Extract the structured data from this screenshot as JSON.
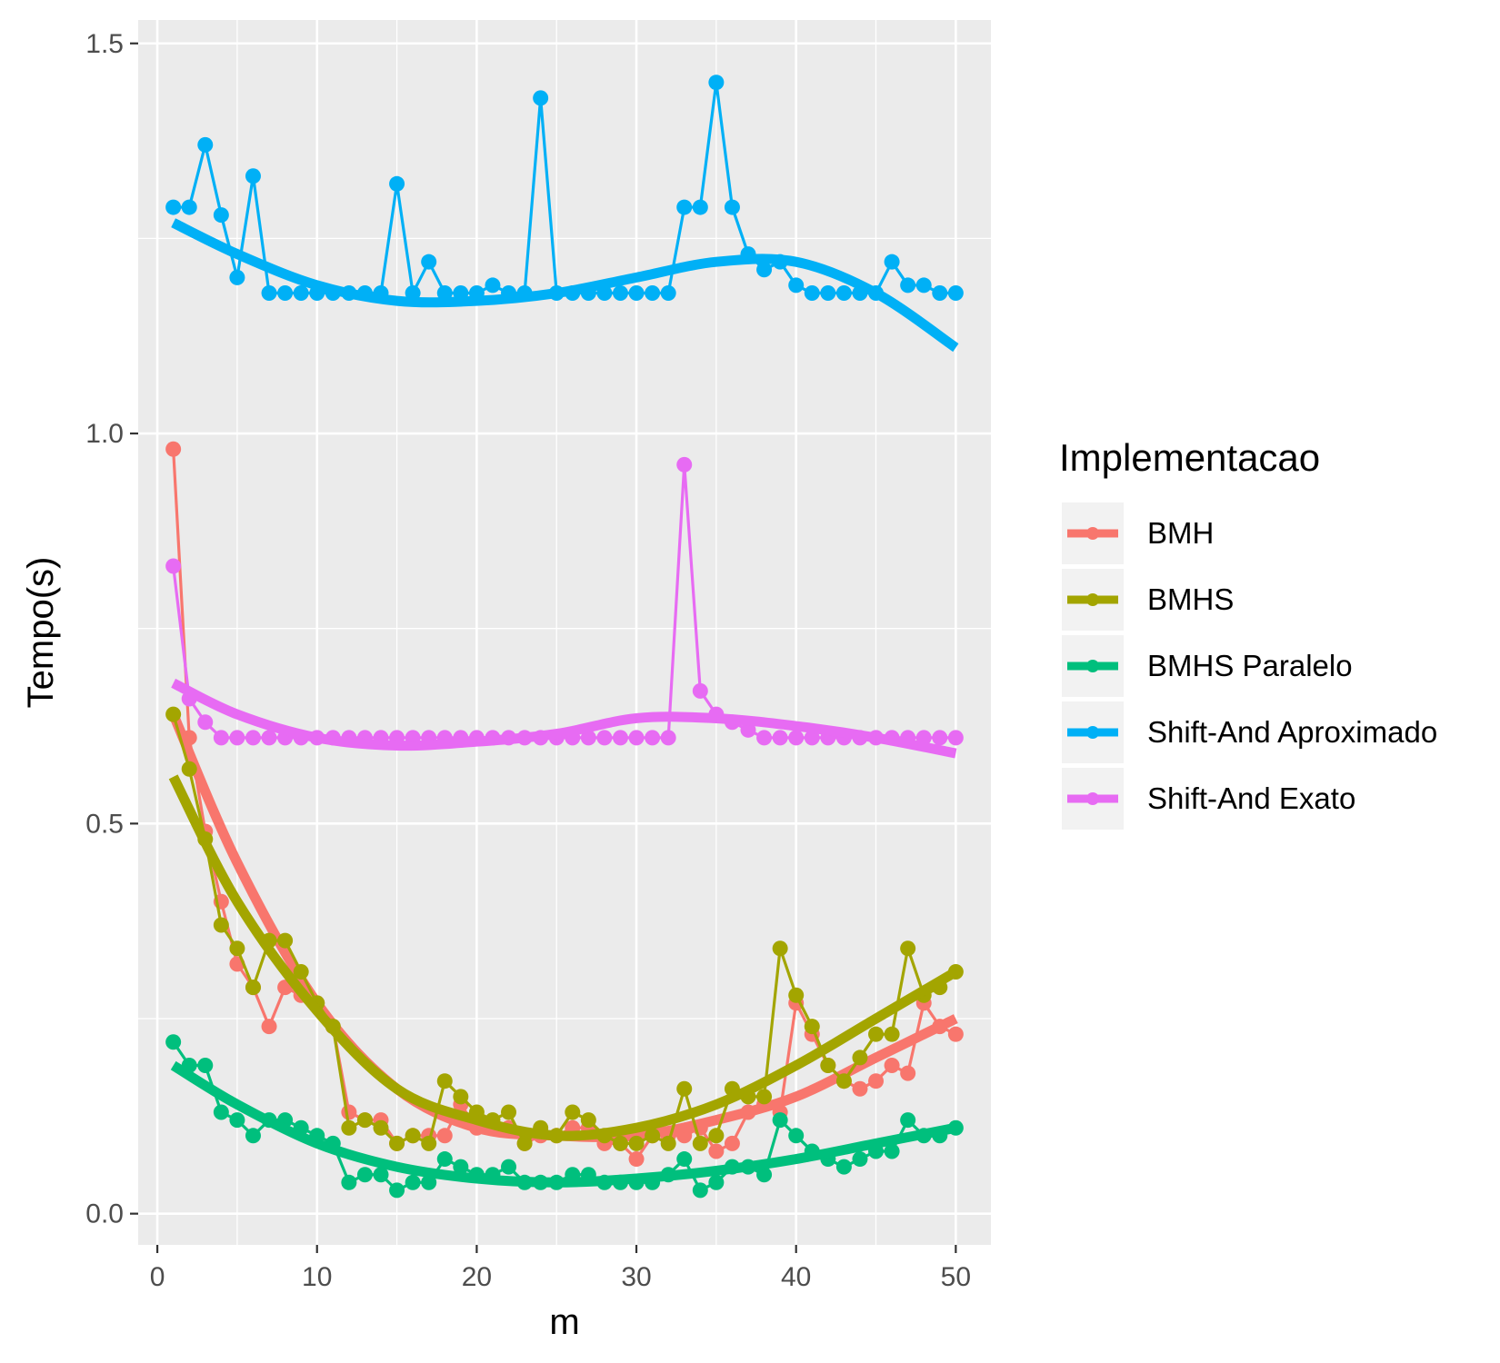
{
  "chart_data": {
    "type": "line",
    "xlabel": "m",
    "ylabel": "Tempo(s)",
    "xlim": [
      -1.2,
      52.2
    ],
    "ylim": [
      -0.04,
      1.53
    ],
    "x_ticks": [
      0,
      10,
      20,
      30,
      40,
      50
    ],
    "x_tick_labels": [
      "0",
      "10",
      "20",
      "30",
      "40",
      "50"
    ],
    "y_ticks": [
      0.0,
      0.5,
      1.0,
      1.5
    ],
    "y_tick_labels": [
      "0.0",
      "0.5",
      "1.0",
      "1.5"
    ],
    "grid": true,
    "panel_background": "#ebebeb",
    "legend": {
      "title": "Implementacao",
      "position": "right"
    },
    "series": [
      {
        "name": "BMH",
        "color": "#F8766D",
        "x": [
          1,
          2,
          3,
          4,
          5,
          6,
          7,
          8,
          9,
          10,
          11,
          12,
          13,
          14,
          15,
          16,
          17,
          18,
          19,
          20,
          21,
          22,
          23,
          24,
          25,
          26,
          27,
          28,
          29,
          30,
          31,
          32,
          33,
          34,
          35,
          36,
          37,
          38,
          39,
          40,
          41,
          42,
          43,
          44,
          45,
          46,
          47,
          48,
          49,
          50
        ],
        "values": [
          0.98,
          0.61,
          0.49,
          0.4,
          0.32,
          0.29,
          0.24,
          0.29,
          0.28,
          0.27,
          0.24,
          0.13,
          0.12,
          0.12,
          0.09,
          0.1,
          0.1,
          0.1,
          0.14,
          0.11,
          0.11,
          0.11,
          0.09,
          0.1,
          0.1,
          0.11,
          0.11,
          0.09,
          0.09,
          0.07,
          0.1,
          0.1,
          0.1,
          0.11,
          0.08,
          0.09,
          0.13,
          0.14,
          0.13,
          0.27,
          0.23,
          0.19,
          0.17,
          0.16,
          0.17,
          0.19,
          0.18,
          0.27,
          0.24,
          0.23
        ],
        "smooth": [
          [
            1,
            0.64
          ],
          [
            5,
            0.45
          ],
          [
            10,
            0.27
          ],
          [
            15,
            0.16
          ],
          [
            20,
            0.11
          ],
          [
            25,
            0.1
          ],
          [
            30,
            0.1
          ],
          [
            35,
            0.12
          ],
          [
            40,
            0.15
          ],
          [
            45,
            0.2
          ],
          [
            50,
            0.25
          ]
        ]
      },
      {
        "name": "BMHS",
        "color": "#A3A500",
        "x": [
          1,
          2,
          3,
          4,
          5,
          6,
          7,
          8,
          9,
          10,
          11,
          12,
          13,
          14,
          15,
          16,
          17,
          18,
          19,
          20,
          21,
          22,
          23,
          24,
          25,
          26,
          27,
          28,
          29,
          30,
          31,
          32,
          33,
          34,
          35,
          36,
          37,
          38,
          39,
          40,
          41,
          42,
          43,
          44,
          45,
          46,
          47,
          48,
          49,
          50
        ],
        "values": [
          0.64,
          0.57,
          0.48,
          0.37,
          0.34,
          0.29,
          0.35,
          0.35,
          0.31,
          0.27,
          0.24,
          0.11,
          0.12,
          0.11,
          0.09,
          0.1,
          0.09,
          0.17,
          0.15,
          0.13,
          0.12,
          0.13,
          0.09,
          0.11,
          0.1,
          0.13,
          0.12,
          0.1,
          0.09,
          0.09,
          0.1,
          0.09,
          0.16,
          0.09,
          0.1,
          0.16,
          0.15,
          0.15,
          0.34,
          0.28,
          0.24,
          0.19,
          0.17,
          0.2,
          0.23,
          0.23,
          0.34,
          0.28,
          0.29,
          0.31
        ],
        "smooth": [
          [
            1,
            0.56
          ],
          [
            5,
            0.4
          ],
          [
            10,
            0.26
          ],
          [
            15,
            0.16
          ],
          [
            20,
            0.12
          ],
          [
            25,
            0.1
          ],
          [
            30,
            0.11
          ],
          [
            35,
            0.14
          ],
          [
            40,
            0.19
          ],
          [
            45,
            0.25
          ],
          [
            50,
            0.31
          ]
        ]
      },
      {
        "name": "BMHS Paralelo",
        "color": "#00BF7D",
        "x": [
          1,
          2,
          3,
          4,
          5,
          6,
          7,
          8,
          9,
          10,
          11,
          12,
          13,
          14,
          15,
          16,
          17,
          18,
          19,
          20,
          21,
          22,
          23,
          24,
          25,
          26,
          27,
          28,
          29,
          30,
          31,
          32,
          33,
          34,
          35,
          36,
          37,
          38,
          39,
          40,
          41,
          42,
          43,
          44,
          45,
          46,
          47,
          48,
          49,
          50
        ],
        "values": [
          0.22,
          0.19,
          0.19,
          0.13,
          0.12,
          0.1,
          0.12,
          0.12,
          0.11,
          0.1,
          0.09,
          0.04,
          0.05,
          0.05,
          0.03,
          0.04,
          0.04,
          0.07,
          0.06,
          0.05,
          0.05,
          0.06,
          0.04,
          0.04,
          0.04,
          0.05,
          0.05,
          0.04,
          0.04,
          0.04,
          0.04,
          0.05,
          0.07,
          0.03,
          0.04,
          0.06,
          0.06,
          0.05,
          0.12,
          0.1,
          0.08,
          0.07,
          0.06,
          0.07,
          0.08,
          0.08,
          0.12,
          0.1,
          0.1,
          0.11
        ],
        "smooth": [
          [
            1,
            0.19
          ],
          [
            5,
            0.14
          ],
          [
            10,
            0.09
          ],
          [
            15,
            0.06
          ],
          [
            20,
            0.045
          ],
          [
            25,
            0.04
          ],
          [
            30,
            0.045
          ],
          [
            35,
            0.055
          ],
          [
            40,
            0.07
          ],
          [
            45,
            0.09
          ],
          [
            50,
            0.11
          ]
        ]
      },
      {
        "name": "Shift-And Aproximado",
        "color": "#00B0F6",
        "x": [
          1,
          2,
          3,
          4,
          5,
          6,
          7,
          8,
          9,
          10,
          11,
          12,
          13,
          14,
          15,
          16,
          17,
          18,
          19,
          20,
          21,
          22,
          23,
          24,
          25,
          26,
          27,
          28,
          29,
          30,
          31,
          32,
          33,
          34,
          35,
          36,
          37,
          38,
          39,
          40,
          41,
          42,
          43,
          44,
          45,
          46,
          47,
          48,
          49,
          50
        ],
        "values": [
          1.29,
          1.29,
          1.37,
          1.28,
          1.2,
          1.33,
          1.18,
          1.18,
          1.18,
          1.18,
          1.18,
          1.18,
          1.18,
          1.18,
          1.32,
          1.18,
          1.22,
          1.18,
          1.18,
          1.18,
          1.19,
          1.18,
          1.18,
          1.43,
          1.18,
          1.18,
          1.18,
          1.18,
          1.18,
          1.18,
          1.18,
          1.18,
          1.29,
          1.29,
          1.45,
          1.29,
          1.23,
          1.21,
          1.22,
          1.19,
          1.18,
          1.18,
          1.18,
          1.18,
          1.18,
          1.22,
          1.19,
          1.19,
          1.18,
          1.18
        ],
        "smooth": [
          [
            1,
            1.27
          ],
          [
            5,
            1.23
          ],
          [
            10,
            1.19
          ],
          [
            15,
            1.17
          ],
          [
            20,
            1.17
          ],
          [
            25,
            1.18
          ],
          [
            30,
            1.2
          ],
          [
            35,
            1.22
          ],
          [
            40,
            1.22
          ],
          [
            45,
            1.18
          ],
          [
            50,
            1.11
          ]
        ]
      },
      {
        "name": "Shift-And Exato",
        "color": "#E76BF3",
        "x": [
          1,
          2,
          3,
          4,
          5,
          6,
          7,
          8,
          9,
          10,
          11,
          12,
          13,
          14,
          15,
          16,
          17,
          18,
          19,
          20,
          21,
          22,
          23,
          24,
          25,
          26,
          27,
          28,
          29,
          30,
          31,
          32,
          33,
          34,
          35,
          36,
          37,
          38,
          39,
          40,
          41,
          42,
          43,
          44,
          45,
          46,
          47,
          48,
          49,
          50
        ],
        "values": [
          0.83,
          0.66,
          0.63,
          0.61,
          0.61,
          0.61,
          0.61,
          0.61,
          0.61,
          0.61,
          0.61,
          0.61,
          0.61,
          0.61,
          0.61,
          0.61,
          0.61,
          0.61,
          0.61,
          0.61,
          0.61,
          0.61,
          0.61,
          0.61,
          0.61,
          0.61,
          0.61,
          0.61,
          0.61,
          0.61,
          0.61,
          0.61,
          0.96,
          0.67,
          0.64,
          0.63,
          0.62,
          0.61,
          0.61,
          0.61,
          0.61,
          0.61,
          0.61,
          0.61,
          0.61,
          0.61,
          0.61,
          0.61,
          0.61,
          0.61
        ],
        "smooth": [
          [
            1,
            0.68
          ],
          [
            5,
            0.64
          ],
          [
            10,
            0.61
          ],
          [
            15,
            0.6
          ],
          [
            20,
            0.605
          ],
          [
            25,
            0.615
          ],
          [
            30,
            0.635
          ],
          [
            35,
            0.635
          ],
          [
            40,
            0.625
          ],
          [
            45,
            0.61
          ],
          [
            50,
            0.59
          ]
        ]
      }
    ]
  }
}
